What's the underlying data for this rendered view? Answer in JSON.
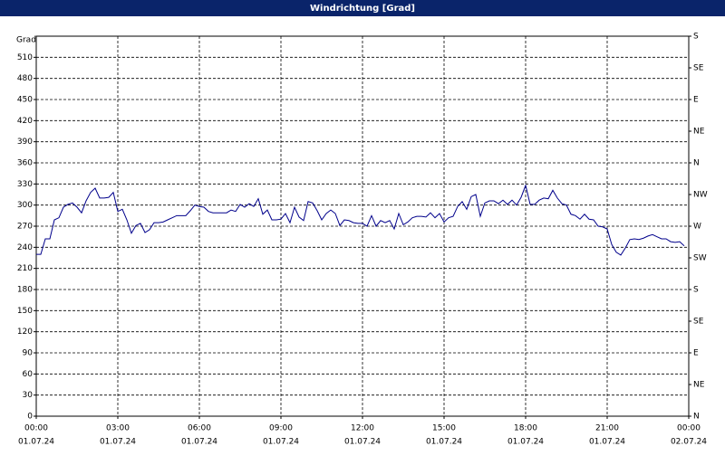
{
  "chart_data": {
    "type": "line",
    "title": "Windrichtung [Grad]",
    "y_label": "Grad",
    "x": [
      0,
      10,
      20,
      30,
      40,
      50,
      60,
      70,
      80,
      90,
      100,
      110,
      120,
      130,
      140,
      150,
      160,
      170,
      180,
      190,
      200,
      210,
      220,
      230,
      240,
      250,
      260,
      270,
      280,
      290,
      300,
      310,
      320,
      330,
      340,
      350,
      360,
      370,
      380,
      390,
      400,
      410,
      420,
      430,
      440,
      450,
      460,
      470,
      480,
      490,
      500,
      510,
      520,
      530,
      540,
      550,
      560,
      570,
      580,
      590,
      600,
      610,
      620,
      630,
      640,
      650,
      660,
      670,
      680,
      690,
      700,
      710,
      720,
      730,
      740,
      750,
      760,
      770,
      780,
      790,
      800,
      810,
      820,
      830,
      840,
      850,
      860,
      870,
      880,
      890,
      900,
      910,
      920,
      930,
      940,
      950,
      960,
      970,
      980,
      990,
      1000,
      1010,
      1020,
      1030,
      1040,
      1050,
      1060,
      1070,
      1080,
      1090,
      1100,
      1110,
      1120,
      1130,
      1140,
      1150,
      1160,
      1170,
      1180,
      1190,
      1200,
      1210,
      1220,
      1230,
      1240,
      1250,
      1260,
      1270,
      1280,
      1290,
      1300,
      1310,
      1320,
      1330,
      1340,
      1350,
      1360,
      1370,
      1380,
      1390,
      1400,
      1410,
      1420,
      1430
    ],
    "series": [
      {
        "name": "Windrichtung",
        "color": "#00008b",
        "values": [
          230,
          230,
          252,
          252,
          279,
          282,
          297,
          301,
          303,
          297,
          289,
          306,
          318,
          324,
          310,
          310,
          311,
          318,
          291,
          294,
          279,
          260,
          271,
          274,
          261,
          265,
          275,
          275,
          276,
          279,
          282,
          285,
          285,
          285,
          292,
          300,
          298,
          297,
          291,
          289,
          289,
          289,
          289,
          293,
          291,
          301,
          297,
          302,
          298,
          309,
          287,
          293,
          279,
          279,
          280,
          288,
          275,
          297,
          283,
          278,
          305,
          303,
          292,
          279,
          288,
          293,
          288,
          271,
          279,
          278,
          275,
          274,
          274,
          270,
          285,
          270,
          278,
          275,
          278,
          266,
          288,
          272,
          276,
          282,
          284,
          284,
          283,
          289,
          282,
          288,
          276,
          282,
          284,
          298,
          305,
          294,
          312,
          315,
          284,
          303,
          306,
          306,
          302,
          307,
          301,
          307,
          300,
          311,
          328,
          301,
          301,
          307,
          310,
          309,
          321,
          310,
          302,
          300,
          287,
          285,
          280,
          287,
          280,
          279,
          270,
          269,
          266,
          244,
          233,
          229,
          239,
          251,
          252,
          251,
          253,
          256,
          258,
          255,
          252,
          252,
          248,
          247,
          248,
          242
        ]
      }
    ],
    "xlim": [
      0,
      1440
    ],
    "xticks": [
      {
        "value": 0,
        "label": "00:00",
        "date": "01.07.24"
      },
      {
        "value": 180,
        "label": "03:00",
        "date": "01.07.24"
      },
      {
        "value": 360,
        "label": "06:00",
        "date": "01.07.24"
      },
      {
        "value": 540,
        "label": "09:00",
        "date": "01.07.24"
      },
      {
        "value": 720,
        "label": "12:00",
        "date": "01.07.24"
      },
      {
        "value": 900,
        "label": "15:00",
        "date": "01.07.24"
      },
      {
        "value": 1080,
        "label": "18:00",
        "date": "01.07.24"
      },
      {
        "value": 1260,
        "label": "21:00",
        "date": "01.07.24"
      },
      {
        "value": 1440,
        "label": "00:00",
        "date": "02.07.24"
      }
    ],
    "ylim": [
      0,
      540
    ],
    "yticks": [
      0,
      30,
      60,
      90,
      120,
      150,
      180,
      210,
      240,
      270,
      300,
      330,
      360,
      390,
      420,
      450,
      480,
      510
    ],
    "y2lim": [
      0,
      540
    ],
    "y2ticks": [
      {
        "value": 0,
        "label": "N"
      },
      {
        "value": 45,
        "label": "NE"
      },
      {
        "value": 90,
        "label": "E"
      },
      {
        "value": 135,
        "label": "SE"
      },
      {
        "value": 180,
        "label": "S"
      },
      {
        "value": 225,
        "label": "SW"
      },
      {
        "value": 270,
        "label": "W"
      },
      {
        "value": 315,
        "label": "NW"
      },
      {
        "value": 360,
        "label": "N"
      },
      {
        "value": 405,
        "label": "NE"
      },
      {
        "value": 450,
        "label": "E"
      },
      {
        "value": 495,
        "label": "SE"
      },
      {
        "value": 540,
        "label": "S"
      }
    ],
    "grid": true
  }
}
